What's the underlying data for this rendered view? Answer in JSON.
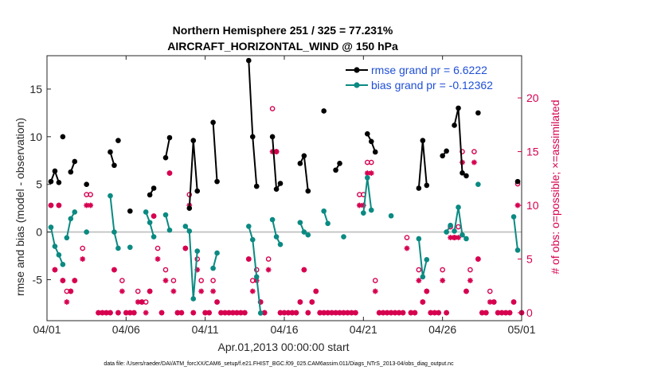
{
  "chart_data": {
    "type": "line",
    "title_line1": "Northern Hemisphere 251 / 325 = 77.231%",
    "title_line2": "AIRCRAFT_HORIZONTAL_WIND @ 150 hPa",
    "xlabel": "Apr.01,2013 00:00:00 start",
    "ylabel_left": "rmse and bias (model - observation)",
    "ylabel_right": "# of obs: o=possible; ×=assimilated",
    "footer": "data file: /Users/raeder/DAI/ATM_forcXX/CAM6_setup/f.e21.FHIST_BGC.f09_025.CAM6assim.011/Diags_NTrS_2013-04/obs_diag_output.nc",
    "xlim": [
      0,
      30
    ],
    "ylim_left": [
      -9.3,
      18.5
    ],
    "ylim_right": [
      -0.74,
      23.93
    ],
    "x_ticks": [
      {
        "v": 0,
        "label": "04/01"
      },
      {
        "v": 5,
        "label": "04/06"
      },
      {
        "v": 10,
        "label": "04/11"
      },
      {
        "v": 15,
        "label": "04/16"
      },
      {
        "v": 20,
        "label": "04/21"
      },
      {
        "v": 25,
        "label": "04/26"
      },
      {
        "v": 30,
        "label": "05/01"
      }
    ],
    "y_left_ticks": [
      {
        "v": -5,
        "label": "-5"
      },
      {
        "v": 0,
        "label": "0"
      },
      {
        "v": 5,
        "label": "5"
      },
      {
        "v": 10,
        "label": "10"
      },
      {
        "v": 15,
        "label": "15"
      }
    ],
    "y_right_ticks": [
      {
        "v": 0,
        "label": "0"
      },
      {
        "v": 5,
        "label": "5"
      },
      {
        "v": 10,
        "label": "10"
      },
      {
        "v": 15,
        "label": "15"
      },
      {
        "v": 20,
        "label": "20"
      }
    ],
    "legend": [
      {
        "label": "rmse grand pr = 6.6222",
        "color": "#000000"
      },
      {
        "label": "bias grand pr = -0.12362",
        "color": "#0a8a82"
      }
    ],
    "rmse_segments": [
      [
        [
          0.25,
          5.3
        ],
        [
          0.5,
          6.4
        ],
        [
          0.75,
          5.2
        ]
      ],
      [
        [
          1.0,
          10.0
        ]
      ],
      [
        [
          1.5,
          6.3
        ],
        [
          1.75,
          7.4
        ]
      ],
      [
        [
          2.5,
          5.0
        ]
      ],
      [
        [
          4.0,
          8.4
        ],
        [
          4.25,
          7.0
        ]
      ],
      [
        [
          4.5,
          9.6
        ]
      ],
      [
        [
          5.25,
          2.2
        ]
      ],
      [
        [
          6.5,
          3.9
        ],
        [
          6.75,
          4.6
        ]
      ],
      [
        [
          7.5,
          7.8
        ],
        [
          7.75,
          9.9
        ]
      ],
      [
        [
          9.0,
          2.5
        ],
        [
          9.25,
          9.6
        ],
        [
          9.5,
          4.3
        ]
      ],
      [
        [
          10.5,
          11.5
        ],
        [
          10.75,
          5.3
        ]
      ],
      [
        [
          12.75,
          18.0
        ],
        [
          13.0,
          10.0
        ],
        [
          13.25,
          4.8
        ]
      ],
      [
        [
          14.25,
          10.0
        ],
        [
          14.5,
          4.5
        ],
        [
          14.75,
          5.1
        ]
      ],
      [
        [
          16.0,
          7.2
        ],
        [
          16.25,
          8.0
        ],
        [
          16.5,
          4.3
        ]
      ],
      [
        [
          17.5,
          12.7
        ]
      ],
      [
        [
          18.25,
          6.5
        ],
        [
          18.5,
          7.2
        ]
      ],
      [
        [
          20.25,
          10.3
        ],
        [
          20.5,
          9.5
        ],
        [
          20.75,
          8.4
        ]
      ],
      [
        [
          23.5,
          4.6
        ],
        [
          23.75,
          9.6
        ],
        [
          24.0,
          4.9
        ]
      ],
      [
        [
          25.0,
          8.0
        ],
        [
          25.25,
          8.5
        ]
      ],
      [
        [
          25.75,
          11.2
        ],
        [
          26.0,
          13.0
        ],
        [
          26.25,
          6.2
        ],
        [
          26.5,
          5.9
        ]
      ],
      [
        [
          27.25,
          12.5
        ]
      ],
      [
        [
          29.75,
          5.3
        ]
      ]
    ],
    "bias_segments": [
      [
        [
          0.25,
          0.5
        ],
        [
          0.5,
          -1.5
        ],
        [
          0.75,
          -2.4
        ],
        [
          1.0,
          -3.4
        ]
      ],
      [
        [
          1.25,
          -0.6
        ],
        [
          1.5,
          1.4
        ],
        [
          1.75,
          2.1
        ]
      ],
      [
        [
          2.5,
          0.0
        ]
      ],
      [
        [
          4.0,
          3.8
        ],
        [
          4.25,
          0.0
        ],
        [
          4.5,
          -1.7
        ]
      ],
      [
        [
          5.25,
          -1.6
        ]
      ],
      [
        [
          6.25,
          2.1
        ],
        [
          6.5,
          1.0
        ],
        [
          6.75,
          -0.5
        ]
      ],
      [
        [
          7.5,
          1.8
        ],
        [
          7.75,
          0.2
        ]
      ],
      [
        [
          8.75,
          0.6
        ],
        [
          9.0,
          0.1
        ],
        [
          9.25,
          -7.0
        ],
        [
          9.5,
          -2.0
        ]
      ],
      [
        [
          10.5,
          -3.8
        ],
        [
          10.75,
          -2.2
        ]
      ],
      [
        [
          12.75,
          0.6
        ],
        [
          13.0,
          -0.8
        ],
        [
          13.25,
          -4.7
        ],
        [
          13.5,
          -8.5
        ]
      ],
      [
        [
          14.25,
          1.3
        ],
        [
          14.5,
          -0.5
        ],
        [
          14.75,
          -1.3
        ]
      ],
      [
        [
          16.0,
          1.0
        ],
        [
          16.25,
          0.0
        ],
        [
          16.5,
          -0.3
        ]
      ],
      [
        [
          17.5,
          2.2
        ],
        [
          17.75,
          0.9
        ]
      ],
      [
        [
          18.75,
          -0.5
        ]
      ],
      [
        [
          20.0,
          2.0
        ],
        [
          20.25,
          5.7
        ],
        [
          20.5,
          2.3
        ]
      ],
      [
        [
          21.75,
          1.7
        ]
      ],
      [
        [
          23.5,
          -0.7
        ],
        [
          23.75,
          -4.7
        ],
        [
          24.0,
          -2.9
        ]
      ],
      [
        [
          25.25,
          0.0
        ],
        [
          25.5,
          0.7
        ]
      ],
      [
        [
          25.75,
          0.1
        ],
        [
          26.0,
          2.6
        ],
        [
          26.25,
          -0.3
        ],
        [
          26.5,
          -0.7
        ]
      ],
      [
        [
          27.25,
          5.0
        ]
      ],
      [
        [
          29.5,
          1.6
        ],
        [
          29.75,
          -1.9
        ]
      ]
    ],
    "possible_counts": [
      [
        0.25,
        10
      ],
      [
        0.5,
        4
      ],
      [
        0.75,
        10
      ],
      [
        1.0,
        3
      ],
      [
        1.25,
        2
      ],
      [
        1.5,
        2
      ],
      [
        1.75,
        3
      ],
      [
        2.25,
        6
      ],
      [
        2.5,
        11
      ],
      [
        2.75,
        11
      ],
      [
        3.25,
        0
      ],
      [
        3.5,
        0
      ],
      [
        3.75,
        0
      ],
      [
        4.0,
        0
      ],
      [
        4.25,
        4
      ],
      [
        4.5,
        0
      ],
      [
        4.75,
        3
      ],
      [
        5.0,
        0
      ],
      [
        5.25,
        0
      ],
      [
        5.5,
        0
      ],
      [
        5.75,
        2
      ],
      [
        6.0,
        1
      ],
      [
        6.25,
        1
      ],
      [
        6.5,
        2
      ],
      [
        6.75,
        9
      ],
      [
        7.0,
        6
      ],
      [
        7.25,
        0
      ],
      [
        7.5,
        4
      ],
      [
        7.75,
        13
      ],
      [
        8.0,
        3
      ],
      [
        8.25,
        0
      ],
      [
        8.5,
        0
      ],
      [
        8.75,
        6
      ],
      [
        9.0,
        11
      ],
      [
        9.25,
        0
      ],
      [
        9.5,
        5
      ],
      [
        9.75,
        3
      ],
      [
        10.0,
        0
      ],
      [
        10.25,
        0
      ],
      [
        10.5,
        3
      ],
      [
        10.75,
        1
      ],
      [
        11.0,
        0
      ],
      [
        11.25,
        0
      ],
      [
        11.5,
        0
      ],
      [
        11.75,
        0
      ],
      [
        12.0,
        0
      ],
      [
        12.25,
        0
      ],
      [
        12.5,
        0
      ],
      [
        12.75,
        5
      ],
      [
        13.0,
        3
      ],
      [
        13.25,
        4
      ],
      [
        13.5,
        1
      ],
      [
        13.75,
        0
      ],
      [
        14.0,
        5
      ],
      [
        14.25,
        19
      ],
      [
        14.5,
        15
      ],
      [
        14.75,
        0
      ],
      [
        15.0,
        0
      ],
      [
        15.25,
        0
      ],
      [
        15.5,
        0
      ],
      [
        15.75,
        0
      ],
      [
        16.0,
        1
      ],
      [
        16.25,
        4
      ],
      [
        16.5,
        0
      ],
      [
        16.75,
        1
      ],
      [
        17.0,
        2
      ],
      [
        17.25,
        0
      ],
      [
        17.5,
        0
      ],
      [
        17.75,
        0
      ],
      [
        18.0,
        0
      ],
      [
        18.25,
        0
      ],
      [
        18.5,
        0
      ],
      [
        18.75,
        0
      ],
      [
        19.0,
        0
      ],
      [
        19.25,
        0
      ],
      [
        19.5,
        0
      ],
      [
        19.75,
        11
      ],
      [
        20.0,
        11
      ],
      [
        20.25,
        14
      ],
      [
        20.5,
        14
      ],
      [
        20.75,
        3
      ],
      [
        21.0,
        0
      ],
      [
        21.25,
        0
      ],
      [
        21.5,
        0
      ],
      [
        21.75,
        0
      ],
      [
        22.0,
        0
      ],
      [
        22.25,
        0
      ],
      [
        22.5,
        0
      ],
      [
        22.75,
        7
      ],
      [
        23.0,
        0
      ],
      [
        23.25,
        0
      ],
      [
        23.5,
        4
      ],
      [
        23.75,
        1
      ],
      [
        24.0,
        2
      ],
      [
        24.25,
        0
      ],
      [
        24.5,
        0
      ],
      [
        24.75,
        0
      ],
      [
        25.0,
        4
      ],
      [
        25.25,
        0
      ],
      [
        25.5,
        8
      ],
      [
        25.75,
        7
      ],
      [
        26.0,
        8
      ],
      [
        26.25,
        15
      ],
      [
        26.5,
        2
      ],
      [
        26.75,
        4
      ],
      [
        27.0,
        15
      ],
      [
        27.25,
        5
      ],
      [
        27.5,
        0
      ],
      [
        27.75,
        0
      ],
      [
        28.0,
        2
      ],
      [
        28.25,
        1
      ],
      [
        28.5,
        0
      ],
      [
        28.75,
        0
      ],
      [
        29.0,
        0
      ],
      [
        29.25,
        0
      ],
      [
        29.5,
        1
      ],
      [
        29.75,
        12
      ],
      [
        30.0,
        0
      ]
    ],
    "assimilated_counts": [
      [
        0.25,
        10
      ],
      [
        0.5,
        4
      ],
      [
        0.75,
        10
      ],
      [
        1.0,
        3
      ],
      [
        1.25,
        1
      ],
      [
        1.5,
        2
      ],
      [
        1.75,
        3
      ],
      [
        2.25,
        5
      ],
      [
        2.5,
        10
      ],
      [
        2.75,
        10
      ],
      [
        3.25,
        0
      ],
      [
        3.5,
        0
      ],
      [
        3.75,
        0
      ],
      [
        4.0,
        0
      ],
      [
        4.25,
        4
      ],
      [
        4.5,
        0
      ],
      [
        4.75,
        2
      ],
      [
        5.0,
        0
      ],
      [
        5.25,
        0
      ],
      [
        5.5,
        0
      ],
      [
        5.75,
        1
      ],
      [
        6.0,
        1
      ],
      [
        6.25,
        0
      ],
      [
        6.5,
        2
      ],
      [
        6.75,
        9
      ],
      [
        7.0,
        5
      ],
      [
        7.25,
        0
      ],
      [
        7.5,
        3
      ],
      [
        7.75,
        13
      ],
      [
        8.0,
        2
      ],
      [
        8.25,
        0
      ],
      [
        8.5,
        0
      ],
      [
        8.75,
        6
      ],
      [
        9.0,
        10
      ],
      [
        9.25,
        0
      ],
      [
        9.5,
        4
      ],
      [
        9.75,
        2
      ],
      [
        10.0,
        0
      ],
      [
        10.25,
        0
      ],
      [
        10.5,
        2
      ],
      [
        10.75,
        1
      ],
      [
        11.0,
        0
      ],
      [
        11.25,
        0
      ],
      [
        11.5,
        0
      ],
      [
        11.75,
        0
      ],
      [
        12.0,
        0
      ],
      [
        12.25,
        0
      ],
      [
        12.5,
        0
      ],
      [
        12.75,
        5
      ],
      [
        13.0,
        2
      ],
      [
        13.25,
        3
      ],
      [
        13.5,
        1
      ],
      [
        13.75,
        0
      ],
      [
        14.0,
        4
      ],
      [
        14.25,
        15
      ],
      [
        14.5,
        15
      ],
      [
        14.75,
        0
      ],
      [
        15.0,
        0
      ],
      [
        15.25,
        0
      ],
      [
        15.5,
        0
      ],
      [
        15.75,
        0
      ],
      [
        16.0,
        1
      ],
      [
        16.25,
        4
      ],
      [
        16.5,
        0
      ],
      [
        16.75,
        1
      ],
      [
        17.0,
        2
      ],
      [
        17.25,
        0
      ],
      [
        17.5,
        0
      ],
      [
        17.75,
        0
      ],
      [
        18.0,
        0
      ],
      [
        18.25,
        0
      ],
      [
        18.5,
        0
      ],
      [
        18.75,
        0
      ],
      [
        19.0,
        0
      ],
      [
        19.25,
        0
      ],
      [
        19.5,
        0
      ],
      [
        19.75,
        10
      ],
      [
        20.0,
        10
      ],
      [
        20.25,
        13
      ],
      [
        20.5,
        13
      ],
      [
        20.75,
        2
      ],
      [
        21.0,
        0
      ],
      [
        21.25,
        0
      ],
      [
        21.5,
        0
      ],
      [
        21.75,
        0
      ],
      [
        22.0,
        0
      ],
      [
        22.25,
        0
      ],
      [
        22.5,
        0
      ],
      [
        22.75,
        6
      ],
      [
        23.0,
        0
      ],
      [
        23.25,
        0
      ],
      [
        23.5,
        3
      ],
      [
        23.75,
        1
      ],
      [
        24.0,
        2
      ],
      [
        24.25,
        0
      ],
      [
        24.5,
        0
      ],
      [
        24.75,
        0
      ],
      [
        25.0,
        3
      ],
      [
        25.25,
        0
      ],
      [
        25.5,
        7
      ],
      [
        25.75,
        7
      ],
      [
        26.0,
        7
      ],
      [
        26.25,
        14
      ],
      [
        26.5,
        2
      ],
      [
        26.75,
        3
      ],
      [
        27.0,
        14
      ],
      [
        27.25,
        5
      ],
      [
        27.5,
        0
      ],
      [
        27.75,
        0
      ],
      [
        28.0,
        1
      ],
      [
        28.25,
        1
      ],
      [
        28.5,
        0
      ],
      [
        28.75,
        0
      ],
      [
        29.0,
        0
      ],
      [
        29.25,
        0
      ],
      [
        29.5,
        1
      ],
      [
        29.75,
        10
      ],
      [
        30.0,
        0
      ]
    ]
  },
  "colors": {
    "rmse": "#000000",
    "bias": "#0a8a82",
    "counts": "#d6004f",
    "legend_text": "#1f4fd6",
    "axes": "#262626",
    "zero_line": "#bdbdbd"
  }
}
